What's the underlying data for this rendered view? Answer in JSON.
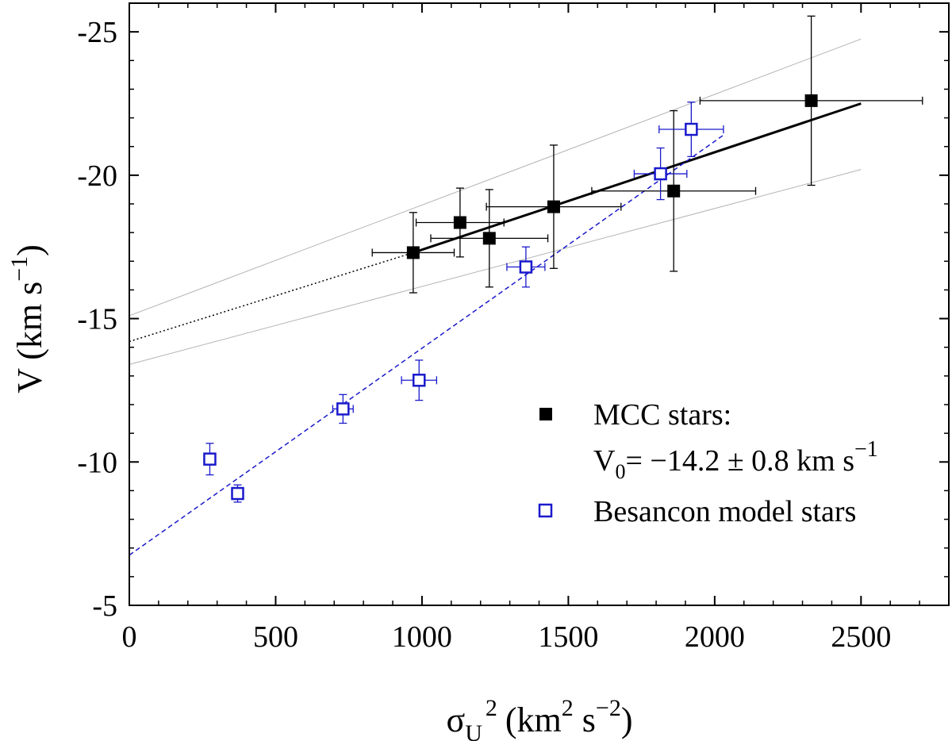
{
  "chart_data": {
    "type": "scatter",
    "xlabel": {
      "symbol": "σ",
      "sub": "U",
      "sup": "2",
      "units_open": "(km",
      "units_sup1": "2",
      "units_mid": " s",
      "units_sup2": "−2",
      "units_close": ")"
    },
    "ylabel": {
      "text": "V (km s",
      "sup": "−1",
      "close": ")"
    },
    "xlim": [
      0,
      2800
    ],
    "ylim": [
      -5,
      -26
    ],
    "y_inverted": true,
    "x_ticks": [
      0,
      500,
      1000,
      1500,
      2000,
      2500
    ],
    "x_tick_labels": [
      "0",
      "500",
      "1000",
      "1500",
      "2000",
      "2500"
    ],
    "y_ticks": [
      -5,
      -10,
      -15,
      -20,
      -25
    ],
    "y_tick_labels": [
      "-5",
      "-10",
      "-15",
      "-20",
      "-25"
    ],
    "x_minor_step": 100,
    "y_minor_step": 1,
    "series": [
      {
        "name": "MCC stars",
        "marker": "filled-square",
        "color": "#000000",
        "points": [
          {
            "x": 970,
            "y": -17.3,
            "xerr": 140,
            "yerr": 1.4
          },
          {
            "x": 1130,
            "y": -18.35,
            "xerr": 150,
            "yerr": 1.2
          },
          {
            "x": 1230,
            "y": -17.8,
            "xerr": 200,
            "yerr": 1.7
          },
          {
            "x": 1450,
            "y": -18.9,
            "xerr": 230,
            "yerr": 2.15
          },
          {
            "x": 1860,
            "y": -19.45,
            "xerr": 280,
            "yerr": 2.8
          },
          {
            "x": 2330,
            "y": -22.6,
            "xerr": 380,
            "yerr": 2.95
          }
        ]
      },
      {
        "name": "Besancon model stars",
        "marker": "open-square",
        "color": "#1a1acc",
        "points": [
          {
            "x": 275,
            "y": -10.1,
            "xerr": 20,
            "yerr": 0.55
          },
          {
            "x": 370,
            "y": -8.9,
            "xerr": 20,
            "yerr": 0.3
          },
          {
            "x": 730,
            "y": -11.85,
            "xerr": 35,
            "yerr": 0.5
          },
          {
            "x": 990,
            "y": -12.85,
            "xerr": 60,
            "yerr": 0.7
          },
          {
            "x": 1355,
            "y": -16.8,
            "xerr": 65,
            "yerr": 0.7
          },
          {
            "x": 1815,
            "y": -20.05,
            "xerr": 90,
            "yerr": 0.9
          },
          {
            "x": 1920,
            "y": -21.6,
            "xerr": 110,
            "yerr": 0.95
          }
        ]
      }
    ],
    "fit_lines": [
      {
        "name": "MCC fit",
        "style": "solid",
        "color": "#000000",
        "width": 3,
        "x0": 970,
        "y0": -17.3,
        "x1": 2500,
        "y1": -22.5
      },
      {
        "name": "MCC extrapolation",
        "style": "dotted",
        "color": "#000000",
        "width": 1.5,
        "x0": 0,
        "y0": -14.2,
        "x1": 970,
        "y1": -17.3
      },
      {
        "name": "Upper bound",
        "style": "solid",
        "color": "#b4b4b4",
        "width": 1,
        "x0": 0,
        "y0": -15.1,
        "x1": 2500,
        "y1": -24.75
      },
      {
        "name": "Lower bound",
        "style": "solid",
        "color": "#b4b4b4",
        "width": 1,
        "x0": 0,
        "y0": -13.4,
        "x1": 2500,
        "y1": -20.2
      },
      {
        "name": "Besancon fit",
        "style": "dashed",
        "color": "#1a1acc",
        "width": 1.5,
        "x0": 0,
        "y0": -6.75,
        "x1": 2030,
        "y1": -21.4
      }
    ],
    "legend": {
      "position": "bottom-right",
      "entries": [
        {
          "marker": "filled-square",
          "color": "#000000",
          "line1": "MCC stars:",
          "line2_prefix": "V",
          "line2_sub": "0",
          "line2_rest": "= −14.2 ± 0.8  km s",
          "line2_sup": "−1"
        },
        {
          "marker": "open-square",
          "color": "#1a1acc",
          "line1": "Besancon model stars"
        }
      ]
    }
  }
}
